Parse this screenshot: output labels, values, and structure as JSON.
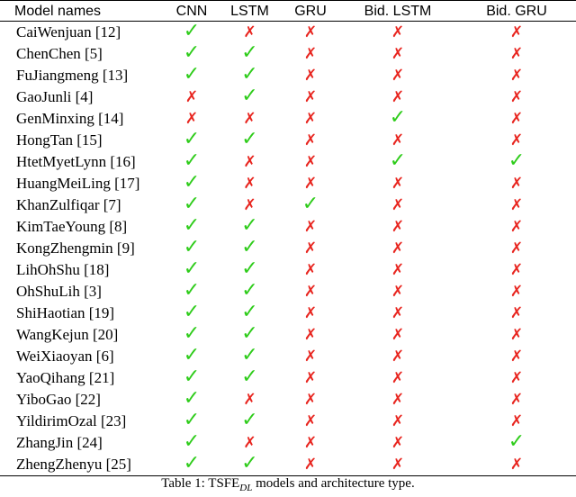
{
  "table": {
    "headers": [
      "Model names",
      "CNN",
      "LSTM",
      "GRU",
      "Bid. LSTM",
      "Bid. GRU"
    ],
    "yes_symbol": "✓",
    "no_symbol": "✗",
    "colors": {
      "yes": "#2ecc1a",
      "no": "#e8251f"
    },
    "rows": [
      {
        "name": "CaiWenjuan [12]",
        "marks": [
          true,
          false,
          false,
          false,
          false
        ]
      },
      {
        "name": "ChenChen [5]",
        "marks": [
          true,
          true,
          false,
          false,
          false
        ]
      },
      {
        "name": "FuJiangmeng [13]",
        "marks": [
          true,
          true,
          false,
          false,
          false
        ]
      },
      {
        "name": "GaoJunli [4]",
        "marks": [
          false,
          true,
          false,
          false,
          false
        ]
      },
      {
        "name": "GenMinxing [14]",
        "marks": [
          false,
          false,
          false,
          true,
          false
        ]
      },
      {
        "name": "HongTan [15]",
        "marks": [
          true,
          true,
          false,
          false,
          false
        ]
      },
      {
        "name": "HtetMyetLynn [16]",
        "marks": [
          true,
          false,
          false,
          true,
          true
        ]
      },
      {
        "name": "HuangMeiLing [17]",
        "marks": [
          true,
          false,
          false,
          false,
          false
        ]
      },
      {
        "name": "KhanZulfiqar [7]",
        "marks": [
          true,
          false,
          true,
          false,
          false
        ]
      },
      {
        "name": "KimTaeYoung [8]",
        "marks": [
          true,
          true,
          false,
          false,
          false
        ]
      },
      {
        "name": "KongZhengmin [9]",
        "marks": [
          true,
          true,
          false,
          false,
          false
        ]
      },
      {
        "name": "LihOhShu [18]",
        "marks": [
          true,
          true,
          false,
          false,
          false
        ]
      },
      {
        "name": "OhShuLih [3]",
        "marks": [
          true,
          true,
          false,
          false,
          false
        ]
      },
      {
        "name": "ShiHaotian [19]",
        "marks": [
          true,
          true,
          false,
          false,
          false
        ]
      },
      {
        "name": "WangKejun [20]",
        "marks": [
          true,
          true,
          false,
          false,
          false
        ]
      },
      {
        "name": "WeiXiaoyan [6]",
        "marks": [
          true,
          true,
          false,
          false,
          false
        ]
      },
      {
        "name": "YaoQihang [21]",
        "marks": [
          true,
          true,
          false,
          false,
          false
        ]
      },
      {
        "name": "YiboGao [22]",
        "marks": [
          true,
          false,
          false,
          false,
          false
        ]
      },
      {
        "name": "YildirimOzal [23]",
        "marks": [
          true,
          true,
          false,
          false,
          false
        ]
      },
      {
        "name": "ZhangJin [24]",
        "marks": [
          true,
          false,
          false,
          false,
          true
        ]
      },
      {
        "name": "ZhengZhenyu [25]",
        "marks": [
          true,
          true,
          false,
          false,
          false
        ]
      }
    ]
  },
  "caption": {
    "prefix": "Table 1: TSFE",
    "subscript": "DL",
    "suffix": " models and architecture type."
  }
}
